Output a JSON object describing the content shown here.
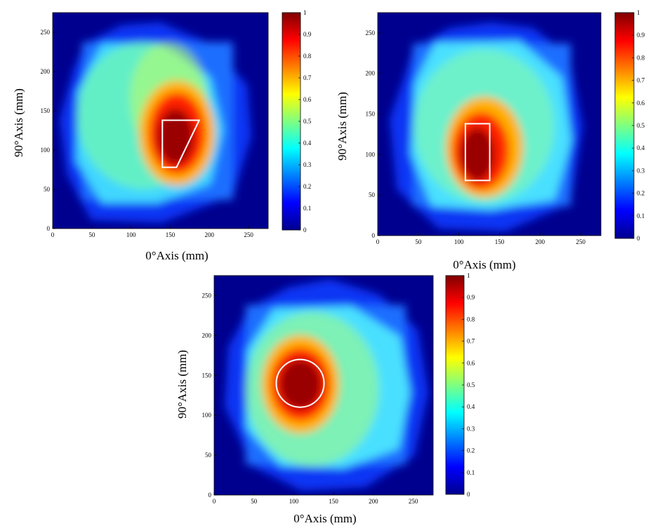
{
  "chart_data": [
    {
      "type": "heatmap",
      "xlabel": "0°Axis (mm)",
      "ylabel": "90°Axis (mm)",
      "xlim": [
        0,
        275
      ],
      "ylim": [
        0,
        275
      ],
      "xticks": [
        "0",
        "50",
        "100",
        "150",
        "200",
        "250"
      ],
      "yticks": [
        "0",
        "50",
        "100",
        "150",
        "200",
        "250"
      ],
      "colorbar": {
        "min": 0,
        "max": 1,
        "ticks": [
          "0",
          "0.1",
          "0.2",
          "0.3",
          "0.4",
          "0.5",
          "0.6",
          "0.7",
          "0.8",
          "0.9",
          "1"
        ]
      },
      "colormap": "jet",
      "hot_spot": {
        "shape": "trapezoid",
        "vertices": [
          [
            140,
            138
          ],
          [
            187,
            138
          ],
          [
            158,
            78
          ],
          [
            140,
            78
          ]
        ]
      }
    },
    {
      "type": "heatmap",
      "xlabel": "0°Axis (mm)",
      "ylabel": "90°Axis (mm)",
      "xlim": [
        0,
        275
      ],
      "ylim": [
        0,
        275
      ],
      "xticks": [
        "0",
        "50",
        "100",
        "150",
        "200",
        "250"
      ],
      "yticks": [
        "0",
        "50",
        "100",
        "150",
        "200",
        "250"
      ],
      "colorbar": {
        "min": 0,
        "max": 1,
        "ticks": [
          "0",
          "0.1",
          "0.2",
          "0.3",
          "0.4",
          "0.5",
          "0.6",
          "0.7",
          "0.8",
          "0.9",
          "1"
        ]
      },
      "colormap": "jet",
      "hot_spot": {
        "shape": "rectangle",
        "x": [
          108,
          138
        ],
        "y": [
          68,
          138
        ]
      }
    },
    {
      "type": "heatmap",
      "xlabel": "0°Axis (mm)",
      "ylabel": "90°Axis (mm)",
      "xlim": [
        0,
        275
      ],
      "ylim": [
        0,
        275
      ],
      "xticks": [
        "0",
        "50",
        "100",
        "150",
        "200",
        "250"
      ],
      "yticks": [
        "0",
        "50",
        "100",
        "150",
        "200",
        "250"
      ],
      "colorbar": {
        "min": 0,
        "max": 1,
        "ticks": [
          "0",
          "0.1",
          "0.2",
          "0.3",
          "0.4",
          "0.5",
          "0.6",
          "0.7",
          "0.8",
          "0.9",
          "1"
        ]
      },
      "colormap": "jet",
      "hot_spot": {
        "shape": "circle",
        "center": [
          108,
          140
        ],
        "radius": 30
      }
    }
  ]
}
